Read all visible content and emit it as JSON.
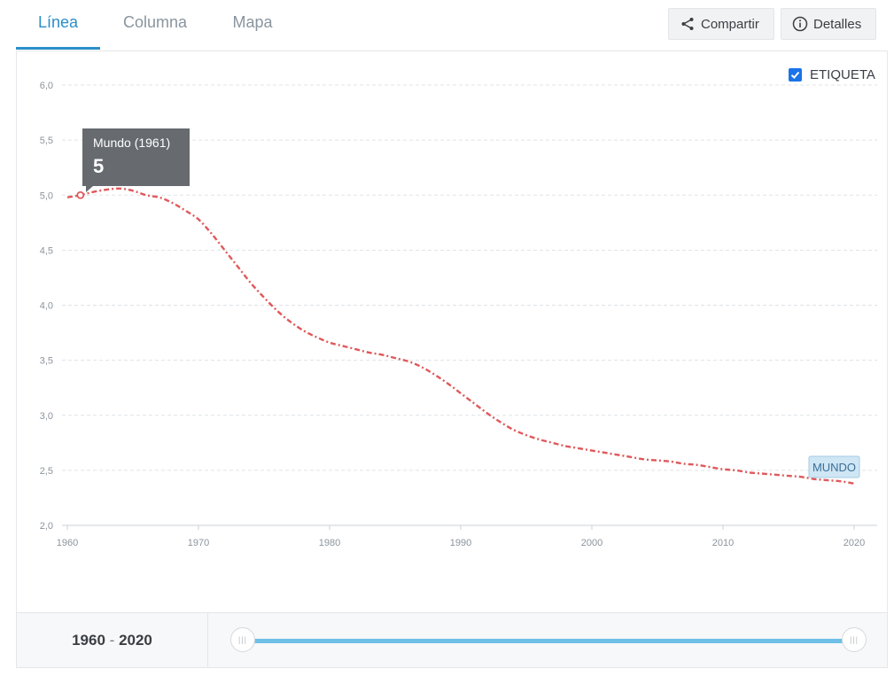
{
  "tabs": [
    {
      "label": "Línea",
      "active": true
    },
    {
      "label": "Columna",
      "active": false
    },
    {
      "label": "Mapa",
      "active": false
    }
  ],
  "toolbar": {
    "share_label": "Compartir",
    "details_label": "Detalles"
  },
  "legend": {
    "label_toggle": "ETIQUETA",
    "checked": true
  },
  "tooltip": {
    "title": "Mundo (1961)",
    "value": "5"
  },
  "range": {
    "start": "1960",
    "separator": "-",
    "end": "2020"
  },
  "slider": {
    "min": 1960,
    "max": 2020,
    "from": 1960,
    "to": 2020
  },
  "colors": {
    "accent": "#2a8ec9",
    "series": "#e0585b",
    "slider": "#6ec0e7"
  },
  "chart_data": {
    "type": "line",
    "title": "",
    "xlabel": "",
    "ylabel": "",
    "xlim": [
      1960,
      2020
    ],
    "ylim": [
      2.0,
      6.0
    ],
    "x_ticks": [
      "1960",
      "1970",
      "1980",
      "1990",
      "2000",
      "2010",
      "2020"
    ],
    "x_tick_values": [
      1960,
      1970,
      1980,
      1990,
      2000,
      2010,
      2020
    ],
    "y_ticks": [
      "2,0",
      "2,5",
      "3,0",
      "3,5",
      "4,0",
      "4,5",
      "5,0",
      "5,5",
      "6,0"
    ],
    "y_tick_values": [
      2.0,
      2.5,
      3.0,
      3.5,
      4.0,
      4.5,
      5.0,
      5.5,
      6.0
    ],
    "grid": true,
    "series": [
      {
        "name": "MUNDO",
        "x": [
          1960,
          1961,
          1962,
          1963,
          1964,
          1965,
          1966,
          1967,
          1968,
          1969,
          1970,
          1971,
          1972,
          1973,
          1974,
          1975,
          1976,
          1977,
          1978,
          1979,
          1980,
          1981,
          1982,
          1983,
          1984,
          1985,
          1986,
          1987,
          1988,
          1989,
          1990,
          1991,
          1992,
          1993,
          1994,
          1995,
          1996,
          1997,
          1998,
          1999,
          2000,
          2001,
          2002,
          2003,
          2004,
          2005,
          2006,
          2007,
          2008,
          2009,
          2010,
          2011,
          2012,
          2013,
          2014,
          2015,
          2016,
          2017,
          2018,
          2019,
          2020
        ],
        "values": [
          4.98,
          5.0,
          5.03,
          5.05,
          5.06,
          5.04,
          5.0,
          4.98,
          4.93,
          4.86,
          4.78,
          4.65,
          4.5,
          4.35,
          4.2,
          4.07,
          3.95,
          3.85,
          3.77,
          3.71,
          3.66,
          3.63,
          3.6,
          3.57,
          3.55,
          3.52,
          3.49,
          3.44,
          3.37,
          3.29,
          3.2,
          3.11,
          3.02,
          2.94,
          2.87,
          2.82,
          2.78,
          2.75,
          2.72,
          2.7,
          2.68,
          2.66,
          2.64,
          2.62,
          2.6,
          2.59,
          2.58,
          2.56,
          2.55,
          2.53,
          2.51,
          2.5,
          2.48,
          2.47,
          2.46,
          2.45,
          2.44,
          2.42,
          2.41,
          2.4,
          2.38
        ]
      }
    ],
    "end_label": "MUNDO",
    "highlight": {
      "x": 1961,
      "y": 5.0
    }
  }
}
